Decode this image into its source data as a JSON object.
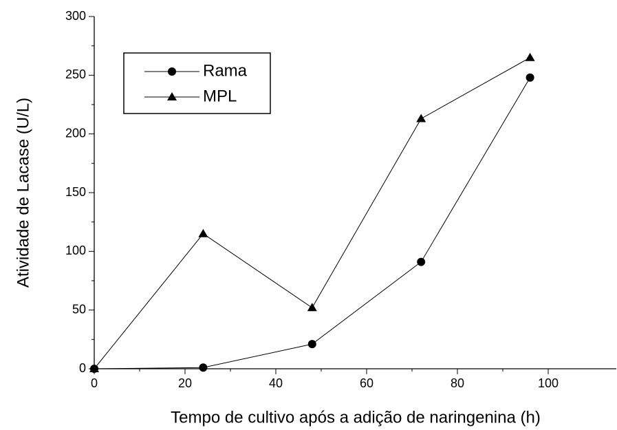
{
  "chart_data": {
    "type": "line",
    "xlabel": "Tempo de cultivo após a adição de naringenina (h)",
    "ylabel": "Atividade de Lacase  (U/L)",
    "xlim": [
      0,
      115
    ],
    "xticks": [
      0,
      20,
      40,
      60,
      80,
      100
    ],
    "ylim": [
      0,
      300
    ],
    "yticks": [
      0,
      50,
      100,
      150,
      200,
      250,
      300
    ],
    "legend": "upper-left",
    "series": [
      {
        "name": "Rama",
        "color": "#000000",
        "marker": "circle",
        "x": [
          0,
          24,
          48,
          72,
          96
        ],
        "values": [
          0,
          1,
          21,
          91,
          248
        ]
      },
      {
        "name": "MPL",
        "color": "#000000",
        "marker": "triangle",
        "x": [
          0,
          24,
          48,
          72,
          96
        ],
        "values": [
          0,
          115,
          52,
          213,
          265
        ]
      }
    ]
  }
}
